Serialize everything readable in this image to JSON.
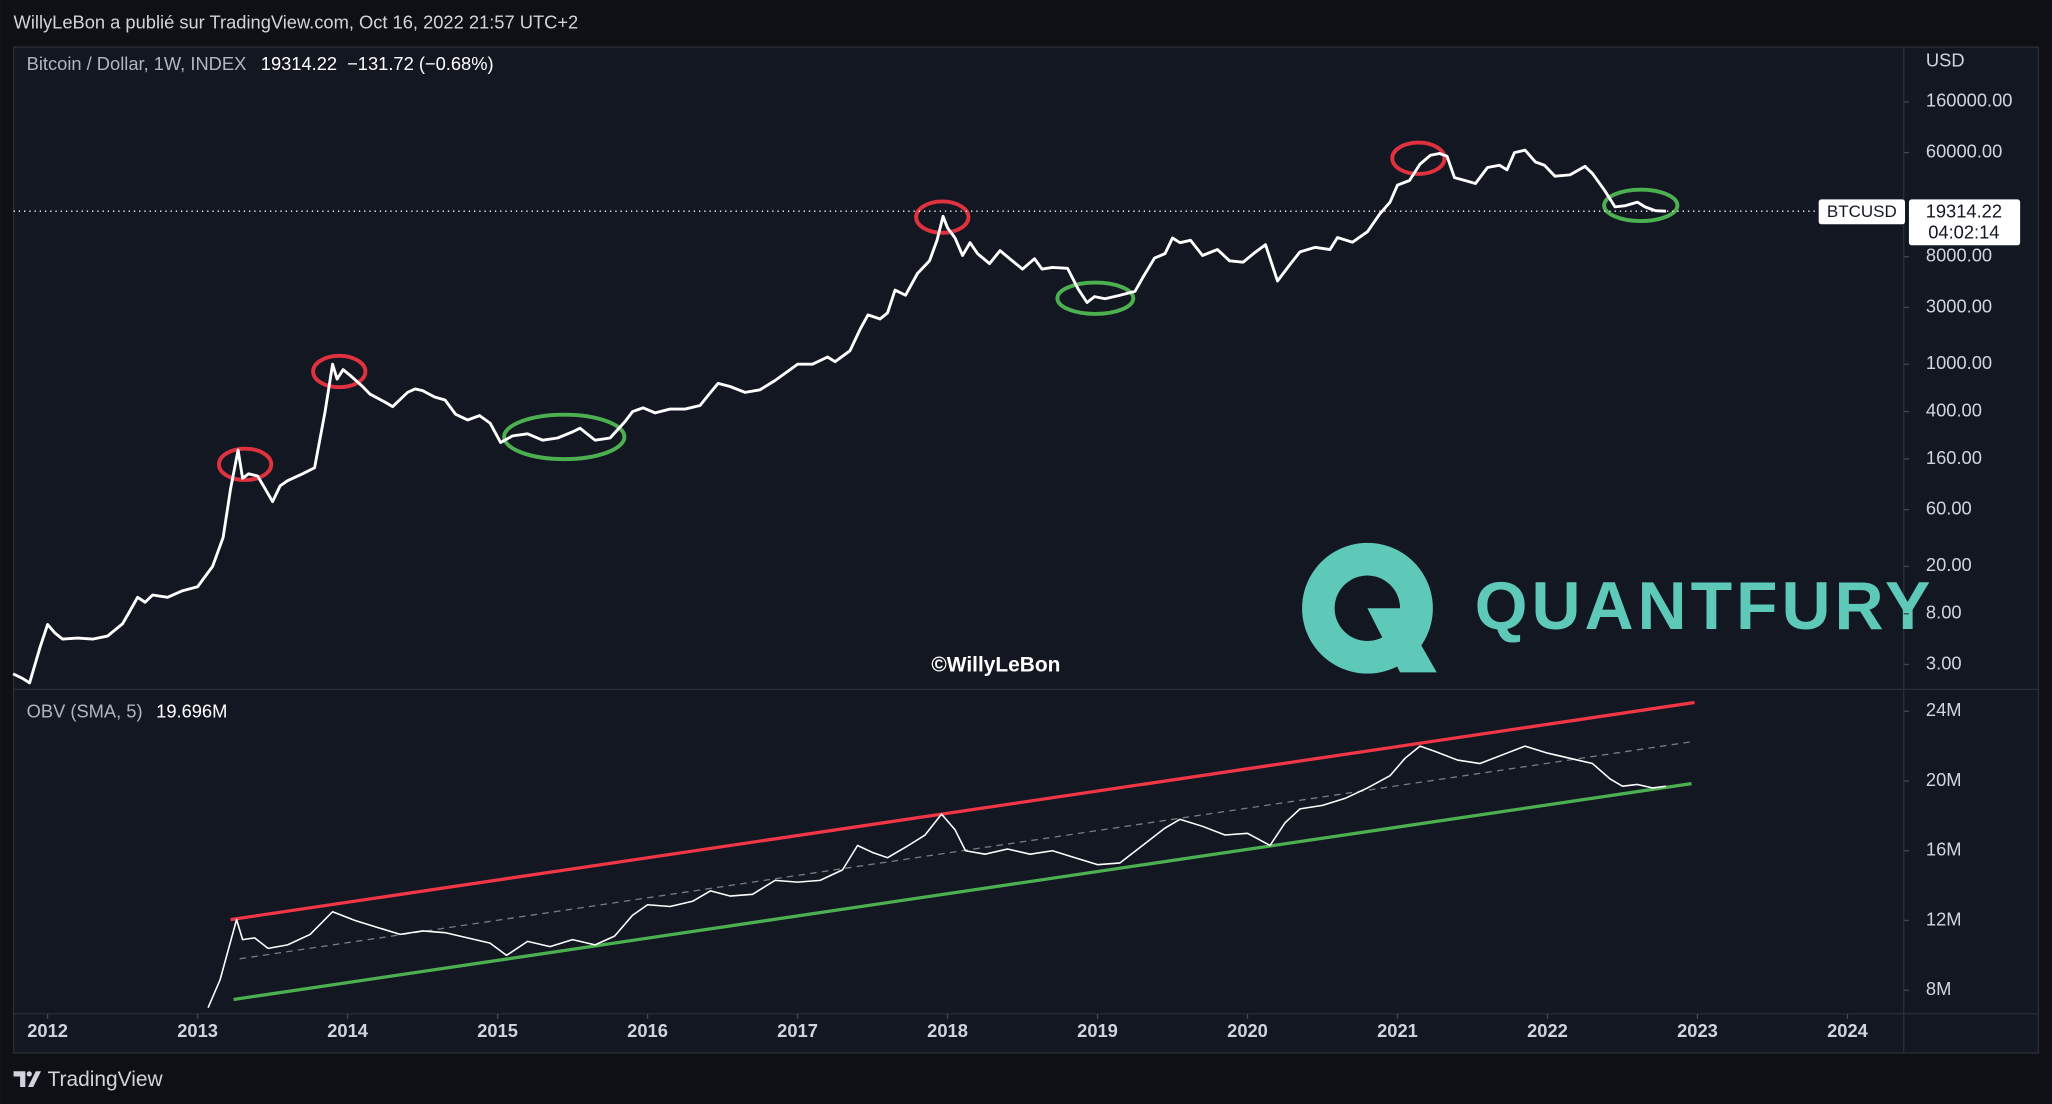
{
  "header": "WillyLeBon a publié sur TradingView.com, Oct 16, 2022 21:57 UTC+2",
  "watermark": "©WillyLeBon",
  "logo_text": "QUANTFURY",
  "brand": "TradingView",
  "chart_data": [
    {
      "type": "line",
      "title": "Bitcoin / Dollar, 1W, INDEX",
      "last_price": 19314.22,
      "change": "−131.72 (−0.68%)",
      "currency": "USD",
      "symbol": "BTCUSD",
      "countdown": "04:02:14",
      "color": "#ffffff",
      "log_scale": true,
      "xlim": [
        2011.773,
        2024.375
      ],
      "ylim": [
        1.95,
        538000
      ],
      "yticks": [
        {
          "value": 160000,
          "label": "160000.00"
        },
        {
          "value": 60000,
          "label": "60000.00"
        },
        {
          "value": 8000,
          "label": "8000.00"
        },
        {
          "value": 3000,
          "label": "3000.00"
        },
        {
          "value": 1000,
          "label": "1000.00"
        },
        {
          "value": 400,
          "label": "400.00"
        },
        {
          "value": 160,
          "label": "160.00"
        },
        {
          "value": 60,
          "label": "60.00"
        },
        {
          "value": 20,
          "label": "20.00"
        },
        {
          "value": 8,
          "label": "8.00"
        },
        {
          "value": 3,
          "label": "3.00"
        }
      ],
      "x": [
        2011.77,
        2011.83,
        2011.88,
        2011.95,
        2012.0,
        2012.05,
        2012.1,
        2012.2,
        2012.3,
        2012.4,
        2012.5,
        2012.55,
        2012.6,
        2012.65,
        2012.7,
        2012.8,
        2012.9,
        2013.0,
        2013.1,
        2013.17,
        2013.22,
        2013.27,
        2013.3,
        2013.34,
        2013.4,
        2013.45,
        2013.5,
        2013.55,
        2013.6,
        2013.7,
        2013.78,
        2013.85,
        2013.9,
        2013.93,
        2013.97,
        2014.02,
        2014.1,
        2014.15,
        2014.25,
        2014.3,
        2014.4,
        2014.45,
        2014.5,
        2014.58,
        2014.65,
        2014.72,
        2014.8,
        2014.88,
        2014.95,
        2015.02,
        2015.1,
        2015.2,
        2015.3,
        2015.4,
        2015.5,
        2015.55,
        2015.65,
        2015.75,
        2015.85,
        2015.9,
        2015.97,
        2016.05,
        2016.15,
        2016.25,
        2016.35,
        2016.42,
        2016.47,
        2016.55,
        2016.65,
        2016.75,
        2016.85,
        2016.95,
        2017.0,
        2017.1,
        2017.2,
        2017.25,
        2017.35,
        2017.42,
        2017.47,
        2017.55,
        2017.6,
        2017.65,
        2017.72,
        2017.8,
        2017.88,
        2017.93,
        2017.97,
        2018.0,
        2018.05,
        2018.1,
        2018.15,
        2018.2,
        2018.28,
        2018.35,
        2018.42,
        2018.5,
        2018.58,
        2018.63,
        2018.7,
        2018.8,
        2018.87,
        2018.93,
        2018.98,
        2019.05,
        2019.15,
        2019.25,
        2019.3,
        2019.38,
        2019.45,
        2019.5,
        2019.55,
        2019.62,
        2019.7,
        2019.8,
        2019.88,
        2019.97,
        2020.05,
        2020.12,
        2020.2,
        2020.28,
        2020.35,
        2020.45,
        2020.55,
        2020.6,
        2020.7,
        2020.8,
        2020.88,
        2020.95,
        2021.0,
        2021.08,
        2021.15,
        2021.22,
        2021.28,
        2021.33,
        2021.38,
        2021.45,
        2021.52,
        2021.6,
        2021.68,
        2021.73,
        2021.78,
        2021.85,
        2021.92,
        2021.98,
        2022.05,
        2022.15,
        2022.25,
        2022.3,
        2022.38,
        2022.45,
        2022.52,
        2022.6,
        2022.65,
        2022.72,
        2022.79
      ],
      "values": [
        2.5,
        2.3,
        2.1,
        4.2,
        6.5,
        5.5,
        4.9,
        5.0,
        4.9,
        5.2,
        6.6,
        8.5,
        11.0,
        10.0,
        11.5,
        11.0,
        12.5,
        13.5,
        20,
        35,
        90,
        190,
        110,
        120,
        115,
        90,
        70,
        95,
        105,
        120,
        135,
        400,
        1000,
        750,
        900,
        800,
        650,
        560,
        480,
        440,
        580,
        620,
        600,
        530,
        500,
        380,
        340,
        370,
        320,
        220,
        250,
        260,
        230,
        240,
        270,
        290,
        230,
        240,
        330,
        400,
        430,
        390,
        420,
        420,
        450,
        580,
        690,
        650,
        580,
        610,
        730,
        900,
        1000,
        1000,
        1150,
        1050,
        1300,
        2000,
        2600,
        2400,
        2700,
        4200,
        3800,
        5800,
        7400,
        11000,
        17500,
        14000,
        11500,
        8200,
        10500,
        8500,
        7000,
        9000,
        7600,
        6300,
        7700,
        6300,
        6500,
        6400,
        4300,
        3300,
        3700,
        3550,
        3800,
        4100,
        5300,
        7800,
        8500,
        11500,
        10500,
        11000,
        8200,
        9200,
        7400,
        7200,
        8700,
        10100,
        5000,
        6800,
        8800,
        9600,
        9200,
        11600,
        10600,
        13000,
        18200,
        23000,
        32000,
        35000,
        48000,
        57000,
        59000,
        56000,
        37000,
        35000,
        33000,
        45000,
        47000,
        43000,
        60000,
        63000,
        50000,
        47000,
        38000,
        39000,
        46000,
        40000,
        29000,
        21000,
        21500,
        23000,
        21000,
        19500,
        19314.22
      ]
    },
    {
      "type": "line",
      "title": "OBV (SMA, 5)",
      "last_value": "19.696M",
      "color": "#ffffff",
      "xlim": [
        2011.773,
        2024.375
      ],
      "ylim": [
        6.65,
        25.18
      ],
      "xticks": [
        2012,
        2013,
        2014,
        2015,
        2016,
        2017,
        2018,
        2019,
        2020,
        2021,
        2022,
        2023,
        2024
      ],
      "yticks": [
        {
          "value": 24,
          "label": "24M"
        },
        {
          "value": 20,
          "label": "20M"
        },
        {
          "value": 16,
          "label": "16M"
        },
        {
          "value": 12,
          "label": "12M"
        },
        {
          "value": 8,
          "label": "8M"
        }
      ],
      "x": [
        2013.07,
        2013.15,
        2013.22,
        2013.26,
        2013.3,
        2013.38,
        2013.47,
        2013.6,
        2013.75,
        2013.9,
        2014.05,
        2014.2,
        2014.35,
        2014.5,
        2014.65,
        2014.8,
        2014.95,
        2015.06,
        2015.2,
        2015.35,
        2015.5,
        2015.65,
        2015.78,
        2015.9,
        2016.0,
        2016.15,
        2016.3,
        2016.42,
        2016.55,
        2016.7,
        2016.85,
        2017.0,
        2017.15,
        2017.3,
        2017.4,
        2017.5,
        2017.6,
        2017.72,
        2017.85,
        2017.96,
        2018.05,
        2018.12,
        2018.25,
        2018.4,
        2018.55,
        2018.7,
        2018.85,
        2019.0,
        2019.15,
        2019.3,
        2019.45,
        2019.55,
        2019.7,
        2019.85,
        2020.0,
        2020.15,
        2020.25,
        2020.35,
        2020.5,
        2020.65,
        2020.8,
        2020.95,
        2021.05,
        2021.15,
        2021.25,
        2021.4,
        2021.55,
        2021.7,
        2021.85,
        2022.0,
        2022.15,
        2022.3,
        2022.42,
        2022.5,
        2022.6,
        2022.7,
        2022.79
      ],
      "values": [
        7.0,
        8.6,
        10.8,
        12.05,
        10.9,
        11.0,
        10.4,
        10.6,
        11.2,
        12.5,
        12.0,
        11.6,
        11.2,
        11.4,
        11.3,
        11.0,
        10.7,
        10.0,
        10.8,
        10.5,
        10.9,
        10.6,
        11.1,
        12.3,
        12.9,
        12.8,
        13.1,
        13.7,
        13.4,
        13.5,
        14.3,
        14.2,
        14.3,
        14.9,
        16.3,
        15.9,
        15.6,
        16.2,
        16.9,
        18.1,
        17.2,
        16.0,
        15.8,
        16.1,
        15.8,
        16.0,
        15.6,
        15.2,
        15.3,
        16.3,
        17.3,
        17.8,
        17.4,
        16.9,
        17.0,
        16.3,
        17.6,
        18.4,
        18.6,
        19.0,
        19.6,
        20.3,
        21.3,
        22.0,
        21.7,
        21.2,
        21.0,
        21.5,
        22.0,
        21.6,
        21.3,
        21.0,
        20.1,
        19.7,
        19.8,
        19.6,
        19.696
      ],
      "trend_lines": [
        {
          "color": "#f23645",
          "dashed": false,
          "x": [
            2013.22,
            2022.98
          ],
          "values": [
            12.05,
            24.5
          ]
        },
        {
          "color": "#4caf50",
          "dashed": false,
          "x": [
            2013.24,
            2022.96
          ],
          "values": [
            7.47,
            19.85
          ]
        },
        {
          "color": "#787b86",
          "dashed": true,
          "x": [
            2013.28,
            2022.96
          ],
          "values": [
            9.8,
            22.25
          ]
        }
      ]
    }
  ]
}
